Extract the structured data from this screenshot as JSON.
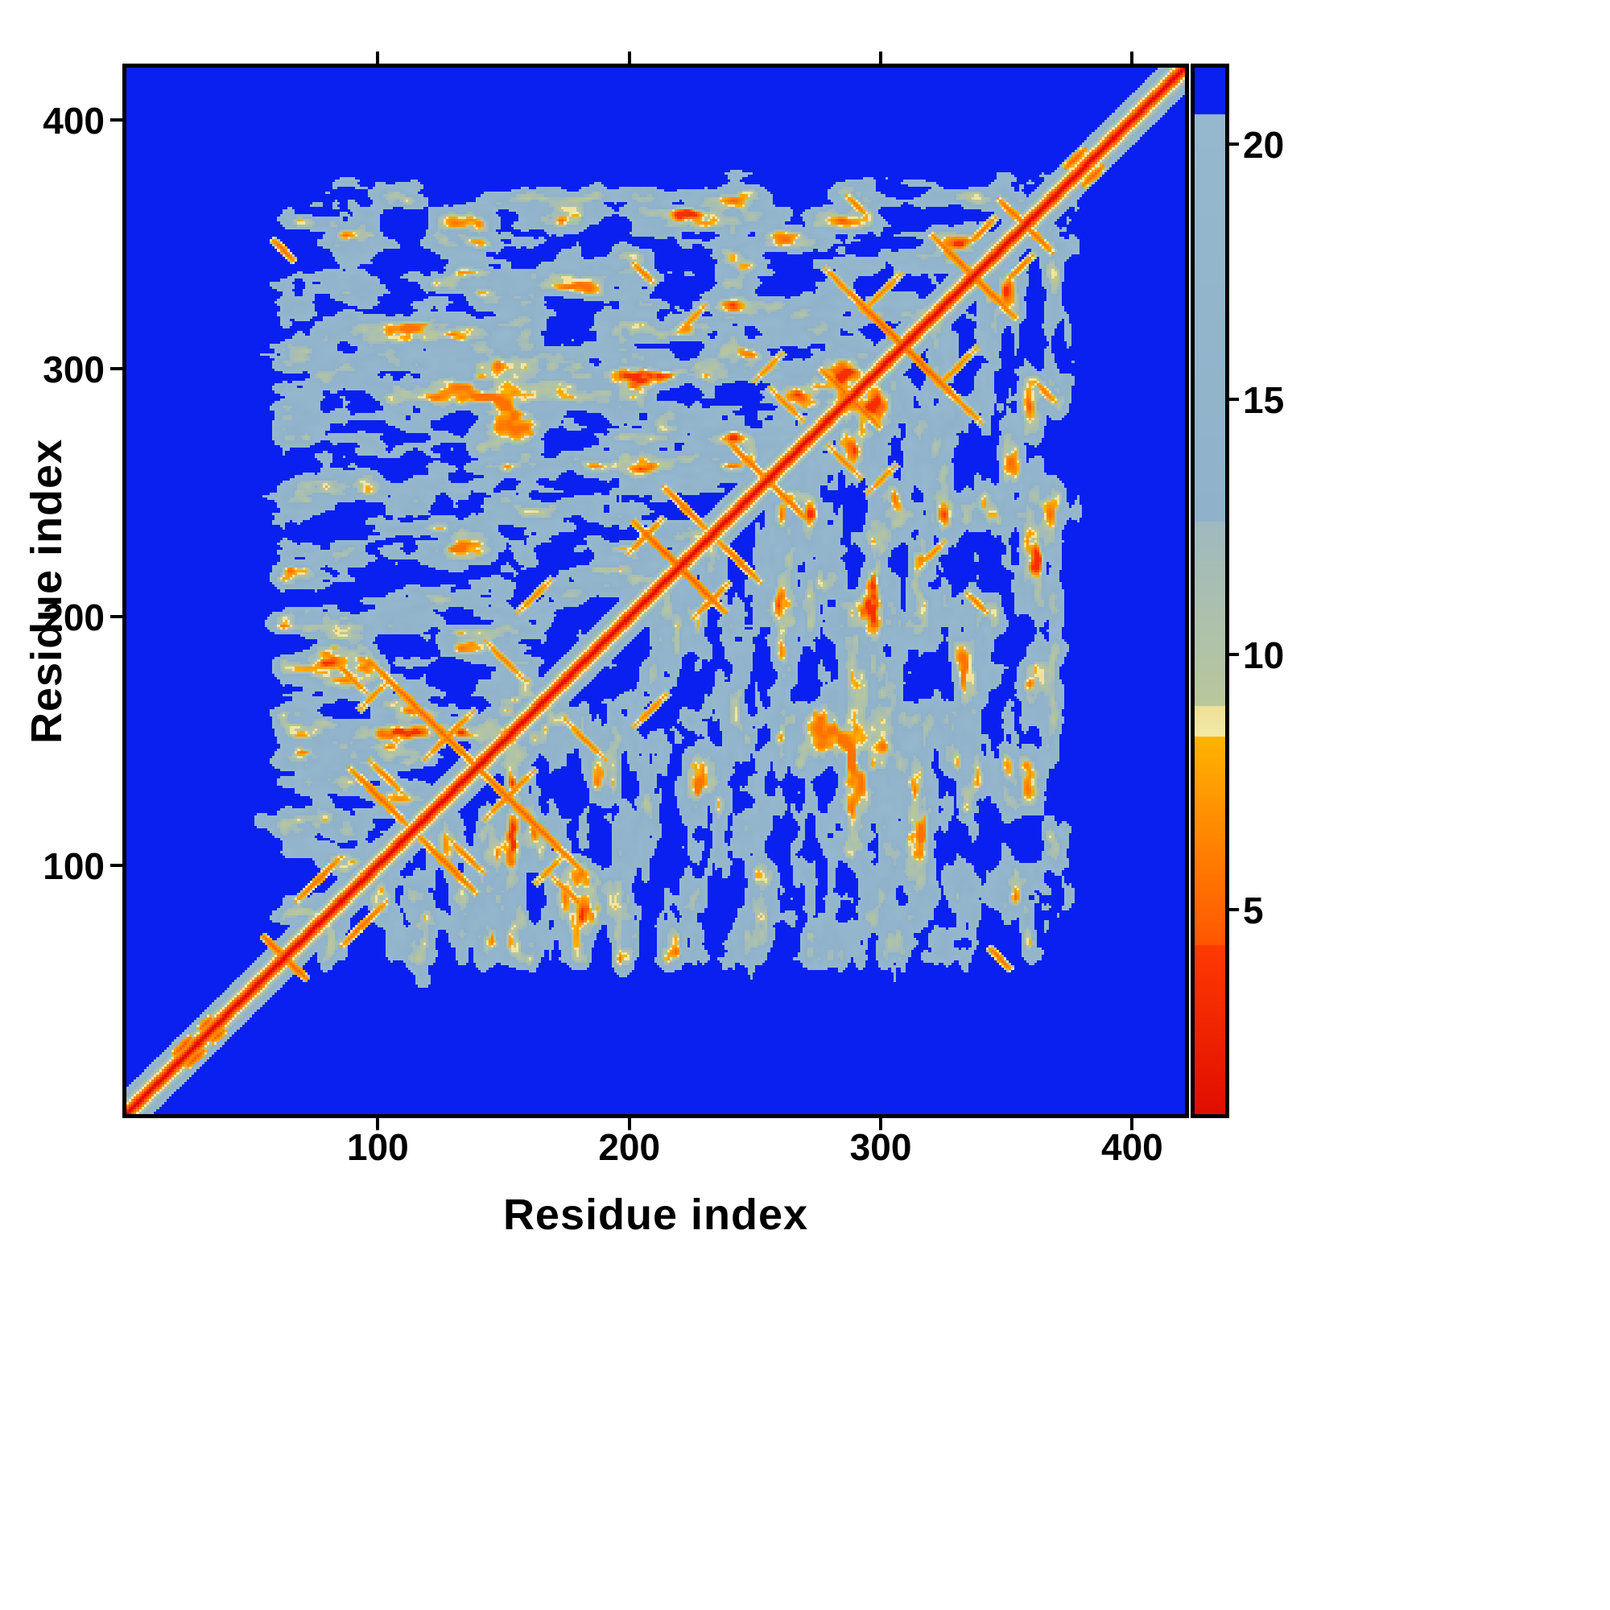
{
  "figure": {
    "background": "#ffffff"
  },
  "chart_data": {
    "type": "heatmap",
    "title": "",
    "xlabel": "Residue index",
    "ylabel": "Residue index",
    "x_range": [
      0,
      421
    ],
    "y_range": [
      0,
      421
    ],
    "x_ticks": [
      100,
      200,
      300,
      400
    ],
    "y_ticks": [
      100,
      200,
      300,
      400
    ],
    "n_residues": 421,
    "grid": false,
    "legend_position": "right-colorbar",
    "colorbar": {
      "vmin": 1,
      "vmax": 21.5,
      "ticks": [
        5,
        10,
        15,
        20
      ]
    },
    "colormap": {
      "background_blue": "#0a20f0",
      "mid_steel": "#8fb2ca",
      "contact_orange": "#ff8800",
      "diagonal_red": "#e80000",
      "segments": [
        {
          "max": 4.3,
          "c0": "#d60000",
          "c1": "#ff3a00"
        },
        {
          "max": 8.4,
          "c0": "#ff5500",
          "c1": "#ffb400"
        },
        {
          "max": 9.0,
          "c0": "#f4e9a8",
          "c1": "#eedf96"
        },
        {
          "max": 12.6,
          "c0": "#b9c79b",
          "c1": "#9fb9bf"
        },
        {
          "max": 20.6,
          "c0": "#8fb2ca",
          "c1": "#96b8ce"
        },
        {
          "max": 99.0,
          "c0": "#0a20f0",
          "c1": "#0a20f0"
        }
      ]
    },
    "structure": {
      "matrix": "symmetric residue-residue distance map, red self-diagonal from (0,0) to (421,421), dense light-blue contact region spanning residues ~48-382, blue elsewhere",
      "start": 48,
      "end": 382,
      "fade": 14,
      "boundary": 196,
      "inter_penalty": 2.0,
      "diagonal": {
        "base": 0.8,
        "slope": 1.9
      },
      "noise": {
        "offset": 3.5,
        "amp": 27
      },
      "streaks": [
        [
          "p",
          22,
          27,
          10,
          4.5
        ],
        [
          "p",
          31,
          36,
          8,
          5.0
        ],
        [
          "a",
          58,
          67,
          14,
          5.0
        ],
        [
          "p",
          76,
          94,
          26,
          5.5
        ],
        [
          "a",
          100,
          127,
          34,
          5.2
        ],
        [
          "a",
          120,
          158,
          70,
          5.0
        ],
        [
          "a",
          88,
          176,
          22,
          6.0
        ],
        [
          "p",
          128,
          152,
          30,
          6.0
        ],
        [
          "a",
          150,
          182,
          24,
          6.2
        ],
        [
          "p",
          98,
          168,
          18,
          6.5
        ],
        [
          "a",
          103,
          135,
          20,
          6.0
        ],
        [
          "a",
          62,
          347,
          14,
          5.5
        ],
        [
          "p",
          162,
          208,
          20,
          6.3
        ],
        [
          "a",
          205,
          338,
          14,
          6.0
        ],
        [
          "a",
          213,
          226,
          34,
          4.8
        ],
        [
          "a",
          222,
          243,
          26,
          5.5
        ],
        [
          "p",
          206,
          232,
          22,
          6.0
        ],
        [
          "a",
          247,
          262,
          28,
          5.5
        ],
        [
          "a",
          262,
          285,
          20,
          6.2
        ],
        [
          "a",
          283,
          292,
          22,
          5.2
        ],
        [
          "a",
          300,
          317,
          44,
          4.8
        ],
        [
          "a",
          283,
          334,
          18,
          6.3
        ],
        [
          "a",
          330,
          343,
          30,
          5.2
        ],
        [
          "p",
          300,
          330,
          24,
          6.4
        ],
        [
          "a",
          352,
          362,
          18,
          5.5
        ],
        [
          "p",
          225,
          320,
          16,
          6.5
        ],
        [
          "p",
          255,
          300,
          18,
          6.6
        ],
        [
          "a",
          290,
          365,
          12,
          6.0
        ],
        [
          "p",
          340,
          355,
          16,
          5.8
        ],
        [
          "p",
          377,
          384,
          12,
          5.0
        ]
      ]
    }
  }
}
